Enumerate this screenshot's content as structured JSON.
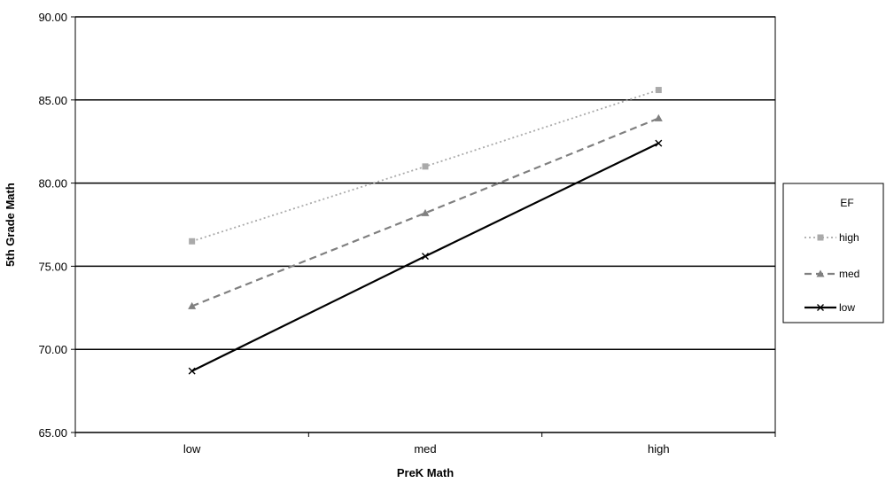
{
  "chart_data": {
    "type": "line",
    "title": "",
    "xlabel": "PreK Math",
    "ylabel": "5th Grade Math",
    "categories": [
      "low",
      "med",
      "high"
    ],
    "ylim": [
      65,
      90
    ],
    "yticks": [
      "65.00",
      "70.00",
      "75.00",
      "80.00",
      "85.00",
      "90.00"
    ],
    "grid": "horizontal",
    "legend": {
      "title": "EF",
      "placement": "right"
    },
    "series": [
      {
        "name": "high",
        "values": [
          76.5,
          81.0,
          85.6
        ],
        "color": "#aaaaaa",
        "dash": "dotted",
        "marker": "square"
      },
      {
        "name": "med",
        "values": [
          72.6,
          78.2,
          83.9
        ],
        "color": "#808080",
        "dash": "dashed",
        "marker": "triangle"
      },
      {
        "name": "low",
        "values": [
          68.7,
          75.6,
          82.4
        ],
        "color": "#000000",
        "dash": "solid",
        "marker": "x"
      }
    ]
  }
}
